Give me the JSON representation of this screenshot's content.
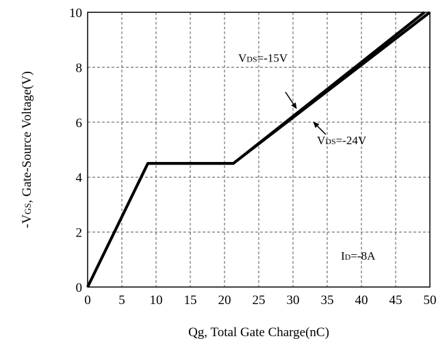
{
  "chart_data": {
    "type": "line",
    "xlabel": "Qg, Total Gate Charge(nC)",
    "ylabel_prefix": "-V",
    "ylabel_sub": "GS",
    "ylabel_suffix": ", Gate-Source Voltage(V)",
    "xlim": [
      0,
      50
    ],
    "ylim": [
      0,
      10
    ],
    "xticks": [
      0,
      5,
      10,
      15,
      20,
      25,
      30,
      35,
      40,
      45,
      50
    ],
    "yticks": [
      0,
      2,
      4,
      6,
      8,
      10
    ],
    "grid": true,
    "grid_style": "dashed",
    "series": [
      {
        "name": "VDS=-15V",
        "x": [
          0,
          8.8,
          21.3,
          49.2
        ],
        "y": [
          0,
          4.5,
          4.5,
          10
        ]
      },
      {
        "name": "VDS=-24V",
        "x": [
          0,
          8.8,
          21.3,
          50
        ],
        "y": [
          0,
          4.5,
          4.5,
          10
        ]
      }
    ],
    "annotations": [
      {
        "prefix": "V",
        "sub": "DS",
        "suffix": "=-15V",
        "x": 30.5,
        "y": 6.5,
        "label_x": 22,
        "label_y": 8.2
      },
      {
        "prefix": "V",
        "sub": "DS",
        "suffix": "=-24V",
        "x": 33,
        "y": 6.0,
        "label_x": 33.5,
        "label_y": 5.2
      },
      {
        "prefix": "I",
        "sub": "D",
        "suffix": "=-8A",
        "label_x": 37,
        "label_y": 1.0
      }
    ]
  }
}
